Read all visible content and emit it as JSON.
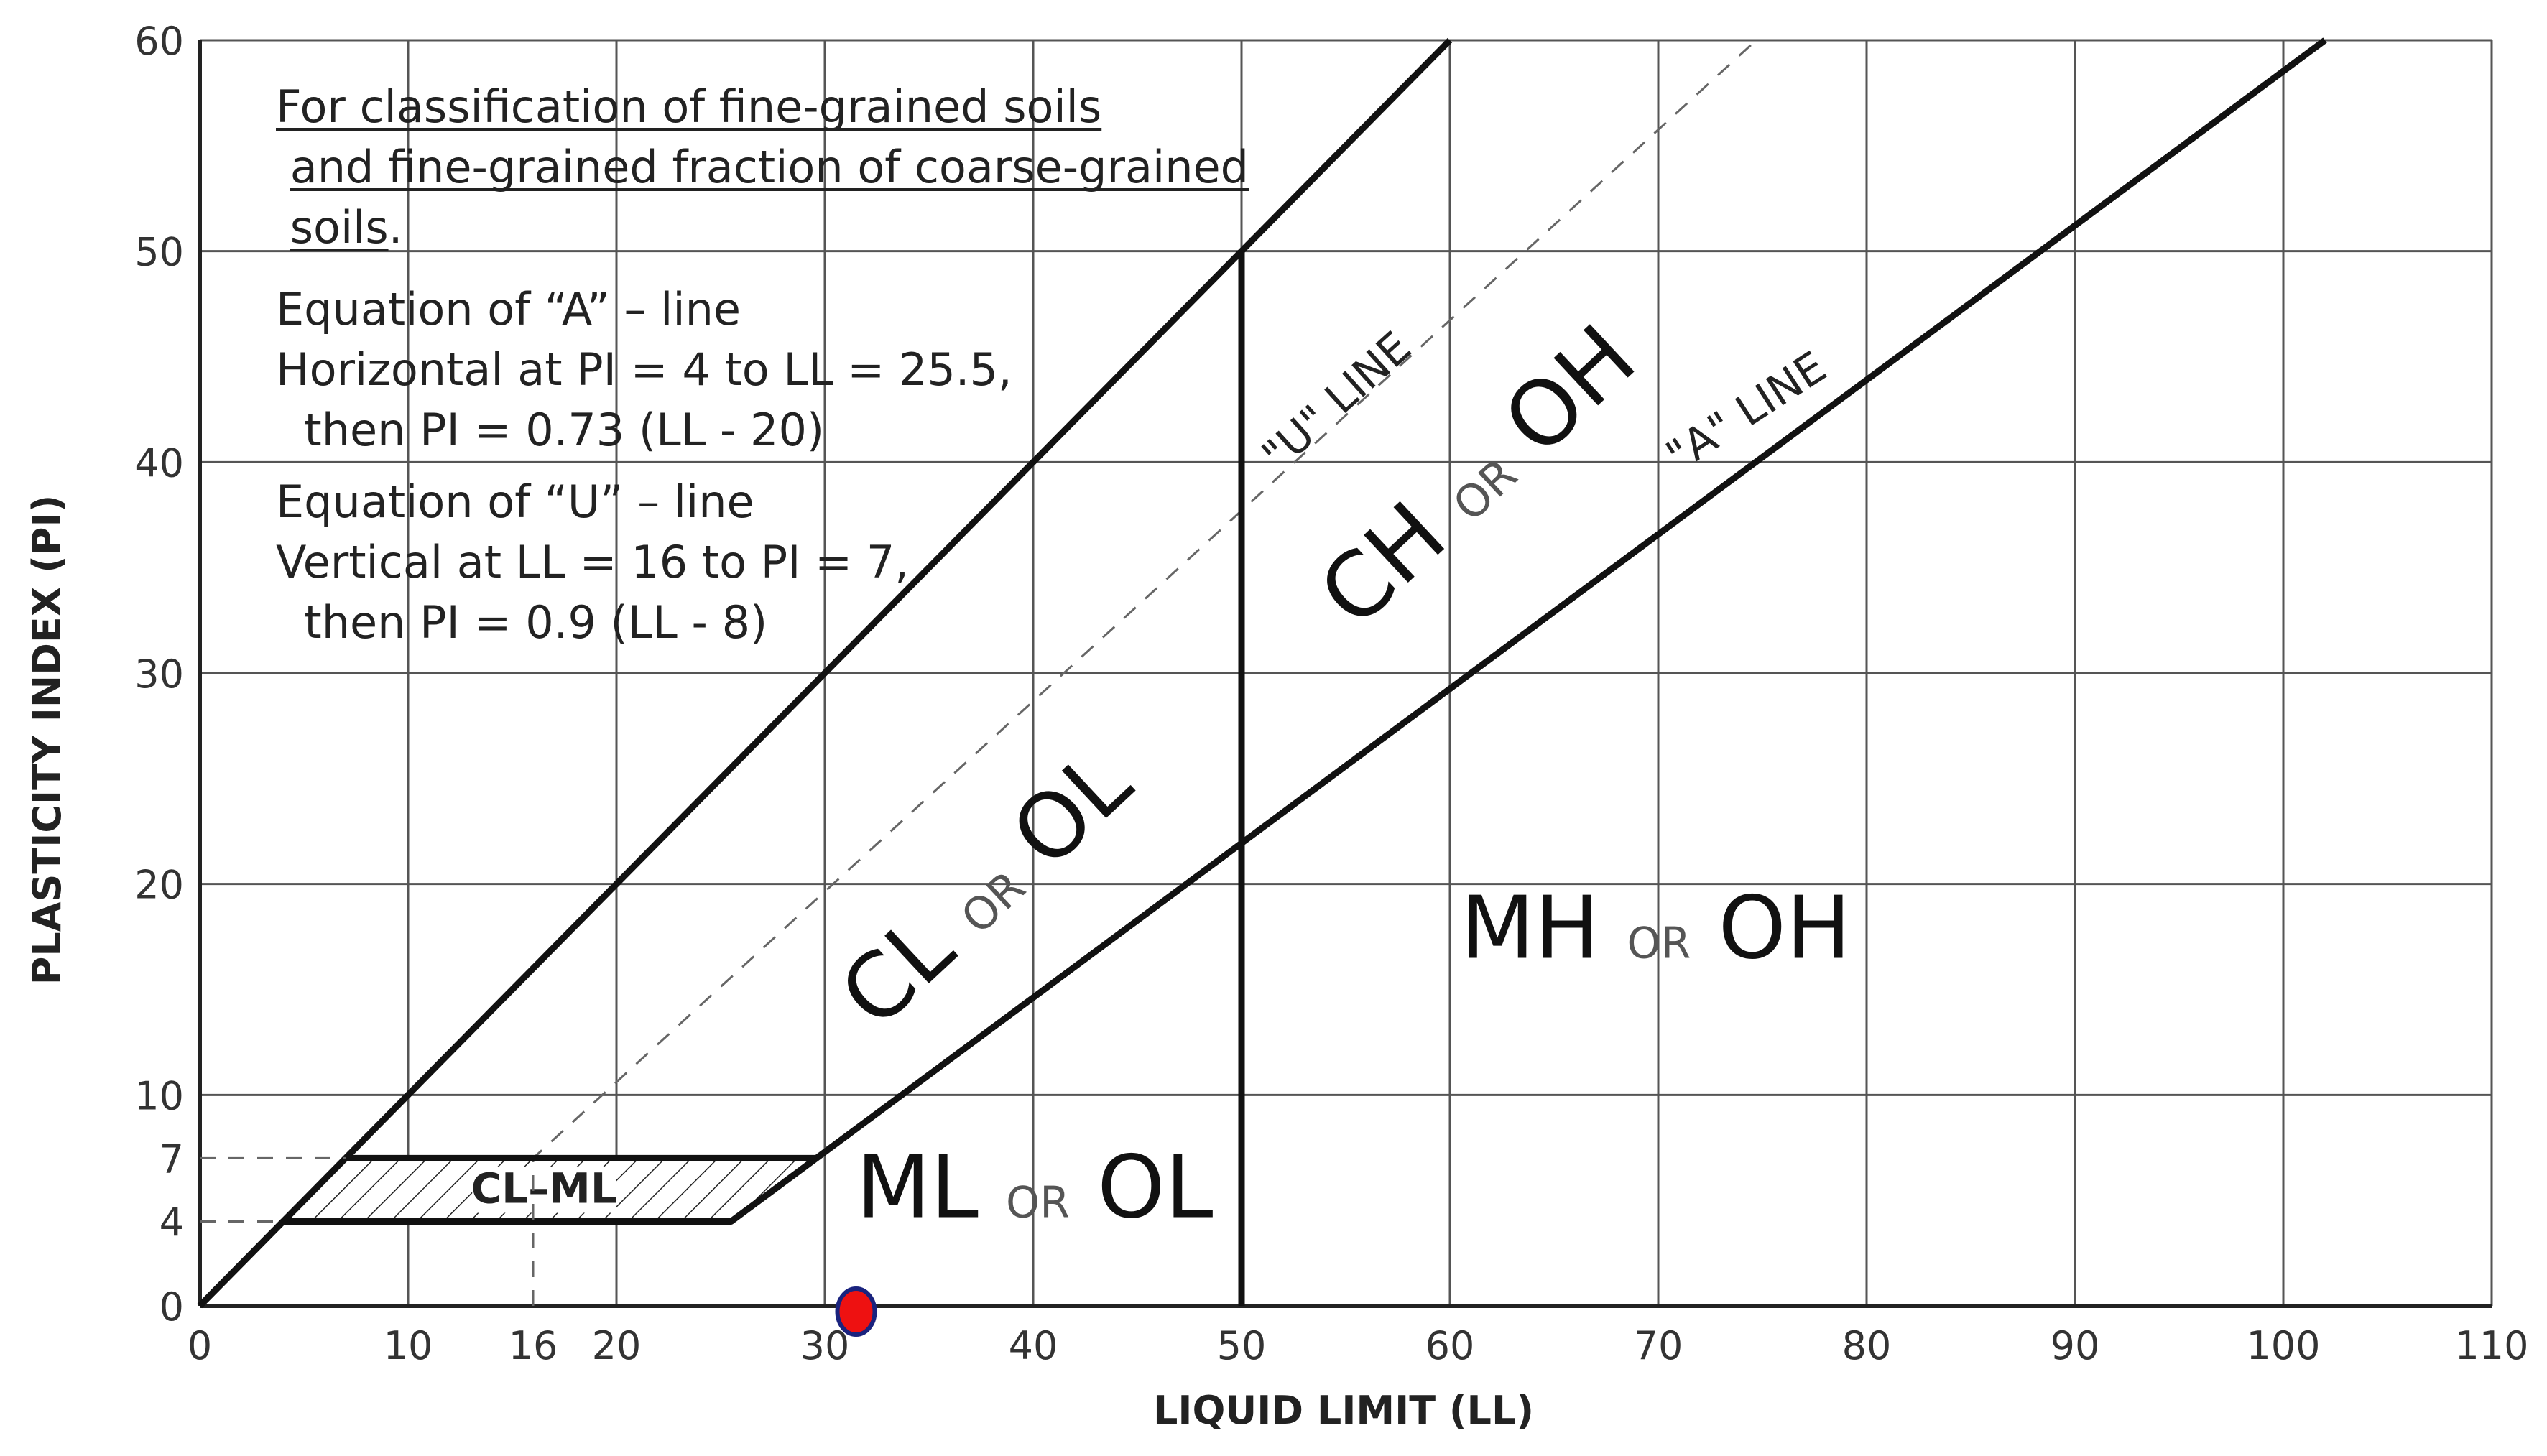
{
  "chart_data": {
    "type": "line",
    "xlabel": "LIQUID LIMIT (LL)",
    "ylabel": "PLASTICITY INDEX (PI)",
    "xlim": [
      0,
      110
    ],
    "ylim": [
      0,
      60
    ],
    "grid": true,
    "x_ticks": [
      0,
      10,
      16,
      20,
      30,
      40,
      50,
      60,
      70,
      80,
      90,
      100,
      110
    ],
    "y_ticks": [
      0,
      4,
      7,
      10,
      20,
      30,
      40,
      50,
      60
    ],
    "x_gridlines": [
      10,
      20,
      30,
      40,
      50,
      60,
      70,
      80,
      90,
      100,
      110
    ],
    "y_gridlines": [
      10,
      20,
      30,
      40,
      50,
      60
    ],
    "series": [
      {
        "name": "\"A\" LINE",
        "style": "solid",
        "points": [
          [
            0,
            0
          ],
          [
            4,
            4
          ],
          [
            25.5,
            4
          ],
          [
            102,
            60
          ]
        ]
      },
      {
        "name": "\"U\" LINE",
        "style": "dashed",
        "points": [
          [
            16,
            0
          ],
          [
            16,
            7
          ],
          [
            74.7,
            60
          ]
        ]
      },
      {
        "style": "solid",
        "points": [
          [
            0,
            0
          ],
          [
            60,
            60
          ]
        ]
      },
      {
        "style": "solid",
        "points": [
          [
            50,
            0
          ],
          [
            50,
            50
          ]
        ]
      },
      {
        "style": "solid",
        "points": [
          [
            7,
            7
          ],
          [
            29.6,
            7
          ]
        ]
      },
      {
        "style": "dashed",
        "points": [
          [
            0,
            7
          ],
          [
            7,
            7
          ]
        ]
      },
      {
        "style": "dashed",
        "points": [
          [
            0,
            4
          ],
          [
            4,
            4
          ]
        ]
      }
    ],
    "hatched_region": {
      "label": "CL–ML",
      "points": [
        [
          4,
          4
        ],
        [
          25.5,
          4
        ],
        [
          29.6,
          7
        ],
        [
          7,
          7
        ]
      ]
    },
    "point": {
      "x": 31.5,
      "y": 0,
      "color": "#ee1111",
      "outline": "#1a237e"
    },
    "zones": [
      {
        "main1": "CL",
        "or": "OR",
        "main2": "OL"
      },
      {
        "main1": "CH",
        "or": "OR",
        "main2": "OH"
      },
      {
        "main1": "ML",
        "or": "OR",
        "main2": "OL"
      },
      {
        "main1": "MH",
        "or": "OR",
        "main2": "OH"
      }
    ],
    "line_labels": {
      "u": "\"U\" LINE",
      "a": "\"A\" LINE"
    },
    "annotations": {
      "heading": [
        "For classification of fine-grained soils",
        " and fine-grained fraction of coarse-grained",
        " soils."
      ],
      "a_eq": [
        "Equation of “A” – line",
        "Horizontal at PI = 4 to LL = 25.5,",
        "  then PI = 0.73 (LL - 20)"
      ],
      "u_eq": [
        "Equation of “U” – line",
        "Vertical at LL = 16 to PI = 7,",
        "  then PI = 0.9 (LL - 8)"
      ]
    }
  }
}
